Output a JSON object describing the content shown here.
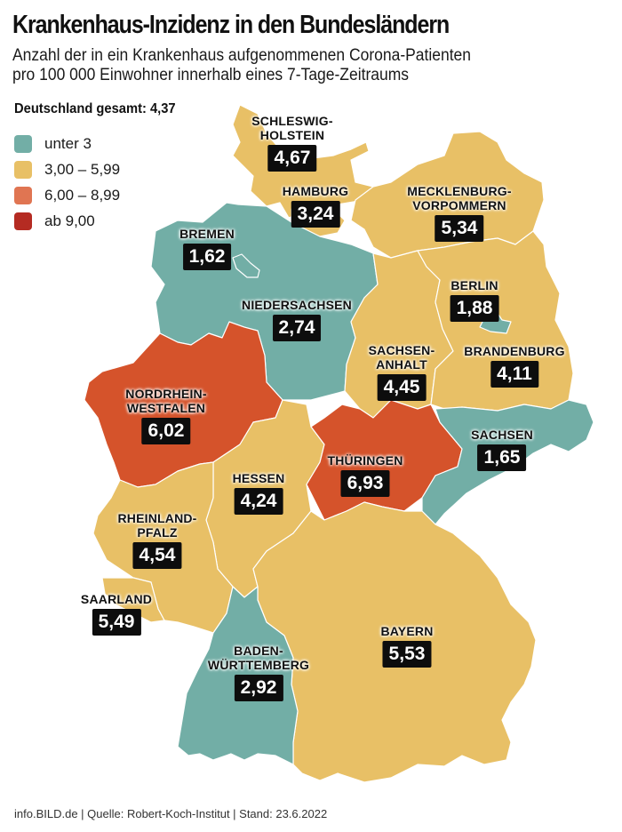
{
  "header": {
    "title": "Krankenhaus-Inzidenz in den Bundesländern",
    "subtitle_line1": "Anzahl der in ein Krankenhaus aufgenommenen Corona-Patienten",
    "subtitle_line2": "pro 100 000 Einwohner innerhalb eines 7-Tage-Zeitraums"
  },
  "total": "Deutschland gesamt: 4,37",
  "legend": [
    {
      "label": "unter 3",
      "color": "#72aea6"
    },
    {
      "label": "3,00 – 5,99",
      "color": "#e8c066"
    },
    {
      "label": "6,00 – 8,99",
      "color": "#e07552"
    },
    {
      "label": "ab 9,00",
      "color": "#b52b22"
    }
  ],
  "states": {
    "schleswig_holstein": {
      "name": "SCHLESWIG-",
      "name2": "HOLSTEIN",
      "value": "4,67",
      "color": "#e8c066"
    },
    "hamburg": {
      "name": "HAMBURG",
      "value": "3,24",
      "color": "#e8c066"
    },
    "mecklenburg": {
      "name": "MECKLENBURG-",
      "name2": "VORPOMMERN",
      "value": "5,34",
      "color": "#e8c066"
    },
    "bremen": {
      "name": "BREMEN",
      "value": "1,62",
      "color": "#72aea6"
    },
    "niedersachsen": {
      "name": "NIEDERSACHSEN",
      "value": "2,74",
      "color": "#72aea6"
    },
    "berlin": {
      "name": "BERLIN",
      "value": "1,88",
      "color": "#72aea6"
    },
    "brandenburg": {
      "name": "BRANDENBURG",
      "value": "4,11",
      "color": "#e8c066"
    },
    "sachsen_anhalt": {
      "name": "SACHSEN-",
      "name2": "ANHALT",
      "value": "4,45",
      "color": "#e8c066"
    },
    "nrw": {
      "name": "NORDRHEIN-",
      "name2": "WESTFALEN",
      "value": "6,02",
      "color": "#d5532b"
    },
    "sachsen": {
      "name": "SACHSEN",
      "value": "1,65",
      "color": "#72aea6"
    },
    "hessen": {
      "name": "HESSEN",
      "value": "4,24",
      "color": "#e8c066"
    },
    "thueringen": {
      "name": "THÜRINGEN",
      "value": "6,93",
      "color": "#d5532b"
    },
    "rheinland_pfalz": {
      "name": "RHEINLAND-",
      "name2": "PFALZ",
      "value": "4,54",
      "color": "#e8c066"
    },
    "saarland": {
      "name": "SAARLAND",
      "value": "5,49",
      "color": "#e8c066"
    },
    "baden_wuerttemberg": {
      "name": "BADEN-",
      "name2": "WÜRTTEMBERG",
      "value": "2,92",
      "color": "#72aea6"
    },
    "bayern": {
      "name": "BAYERN",
      "value": "5,53",
      "color": "#e8c066"
    }
  },
  "footer": "info.BILD.de | Quelle: Robert-Koch-Institut | Stand: 23.6.2022"
}
